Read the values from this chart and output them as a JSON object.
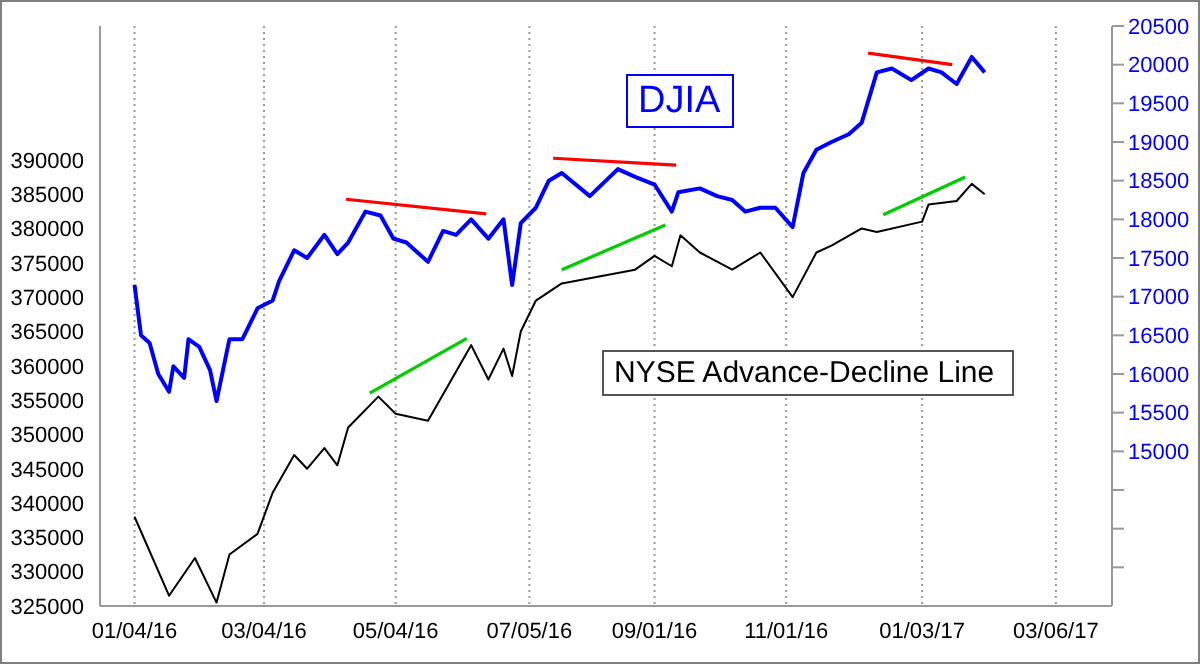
{
  "chart_data": {
    "type": "line",
    "legend": false,
    "grid": "x",
    "xlim": [
      "2015-12-19",
      "2017-04-01"
    ],
    "xticks": [
      {
        "value": "2016-01-04",
        "label": "01/04/16"
      },
      {
        "value": "2016-03-04",
        "label": "03/04/16"
      },
      {
        "value": "2016-05-04",
        "label": "05/04/16"
      },
      {
        "value": "2016-07-05",
        "label": "07/05/16"
      },
      {
        "value": "2016-09-01",
        "label": "09/01/16"
      },
      {
        "value": "2016-11-01",
        "label": "11/01/16"
      },
      {
        "value": "2017-01-03",
        "label": "01/03/17"
      },
      {
        "value": "2017-03-06",
        "label": "03/06/17"
      }
    ],
    "ylim": [
      325000,
      409500
    ],
    "yticks": [
      325000,
      330000,
      335000,
      340000,
      345000,
      350000,
      355000,
      360000,
      365000,
      370000,
      375000,
      380000,
      385000,
      390000
    ],
    "y2lim": [
      13000,
      20500
    ],
    "y2ticks": [
      {
        "value": 13500,
        "label": null
      },
      {
        "value": 14000,
        "label": null
      },
      {
        "value": 14500,
        "label": null
      },
      15000,
      15500,
      16000,
      16500,
      17000,
      17500,
      18000,
      18500,
      19000,
      19500,
      20000,
      20500
    ],
    "series": [
      {
        "name": "DJIA",
        "color": "#0000ff",
        "axis": "y2",
        "x": [
          "2016-01-04",
          "2016-01-07",
          "2016-01-11",
          "2016-01-15",
          "2016-01-20",
          "2016-01-22",
          "2016-01-27",
          "2016-01-29",
          "2016-02-03",
          "2016-02-08",
          "2016-02-11",
          "2016-02-17",
          "2016-02-23",
          "2016-03-01",
          "2016-03-08",
          "2016-03-11",
          "2016-03-18",
          "2016-03-24",
          "2016-04-01",
          "2016-04-07",
          "2016-04-12",
          "2016-04-20",
          "2016-04-27",
          "2016-05-03",
          "2016-05-09",
          "2016-05-19",
          "2016-05-26",
          "2016-06-01",
          "2016-06-08",
          "2016-06-16",
          "2016-06-23",
          "2016-06-27",
          "2016-07-01",
          "2016-07-08",
          "2016-07-14",
          "2016-07-20",
          "2016-08-02",
          "2016-08-15",
          "2016-08-23",
          "2016-09-01",
          "2016-09-09",
          "2016-09-12",
          "2016-09-22",
          "2016-09-30",
          "2016-10-07",
          "2016-10-13",
          "2016-10-20",
          "2016-10-27",
          "2016-11-04",
          "2016-11-09",
          "2016-11-15",
          "2016-11-22",
          "2016-11-30",
          "2016-12-06",
          "2016-12-13",
          "2016-12-20",
          "2016-12-29",
          "2017-01-06",
          "2017-01-12",
          "2017-01-19",
          "2017-01-26",
          "2017-02-01"
        ],
        "values": [
          17150,
          16500,
          16400,
          16000,
          15770,
          16100,
          15950,
          16450,
          16350,
          16050,
          15650,
          16450,
          16450,
          16850,
          16950,
          17200,
          17600,
          17500,
          17800,
          17550,
          17700,
          18100,
          18050,
          17750,
          17700,
          17450,
          17850,
          17800,
          18000,
          17750,
          18000,
          17150,
          17950,
          18150,
          18500,
          18600,
          18300,
          18650,
          18550,
          18450,
          18100,
          18350,
          18400,
          18300,
          18250,
          18100,
          18150,
          18150,
          17900,
          18600,
          18900,
          19000,
          19100,
          19250,
          19900,
          19950,
          19800,
          19950,
          19900,
          19750,
          20100,
          19900
        ]
      },
      {
        "name": "NYSE Advance-Decline Line",
        "color": "#000000",
        "x": [
          "2016-01-04",
          "2016-01-20",
          "2016-02-01",
          "2016-02-11",
          "2016-02-17",
          "2016-03-01",
          "2016-03-08",
          "2016-03-18",
          "2016-03-24",
          "2016-04-01",
          "2016-04-07",
          "2016-04-12",
          "2016-04-26",
          "2016-05-04",
          "2016-05-19",
          "2016-06-08",
          "2016-06-16",
          "2016-06-23",
          "2016-06-27",
          "2016-07-01",
          "2016-07-08",
          "2016-07-20",
          "2016-08-23",
          "2016-09-01",
          "2016-09-09",
          "2016-09-13",
          "2016-09-22",
          "2016-10-07",
          "2016-10-20",
          "2016-11-04",
          "2016-11-15",
          "2016-11-22",
          "2016-12-06",
          "2016-12-13",
          "2017-01-03",
          "2017-01-06",
          "2017-01-19",
          "2017-01-26",
          "2017-02-01"
        ],
        "values": [
          338000,
          326500,
          332000,
          325500,
          332500,
          335500,
          341500,
          347000,
          345000,
          348000,
          345500,
          351000,
          355500,
          353000,
          352000,
          363000,
          358000,
          362500,
          358500,
          365000,
          369500,
          372000,
          374000,
          376000,
          374500,
          379000,
          376500,
          374000,
          376500,
          370000,
          376500,
          377500,
          380000,
          379500,
          381000,
          383500,
          384000,
          386500,
          385000
        ]
      },
      {
        "color": "#ff0000",
        "axis": "y2",
        "x": [
          "2016-04-11",
          "2016-06-15"
        ],
        "values": [
          18260,
          18070
        ]
      },
      {
        "color": "#ff0000",
        "axis": "y2",
        "x": [
          "2016-07-16",
          "2016-09-11"
        ],
        "values": [
          18790,
          18700
        ]
      },
      {
        "color": "#ff0000",
        "axis": "y2",
        "x": [
          "2016-12-09",
          "2017-01-17"
        ],
        "values": [
          20150,
          20000
        ]
      },
      {
        "color": "#00cc00",
        "x": [
          "2016-04-22",
          "2016-06-06"
        ],
        "values": [
          356000,
          364000
        ]
      },
      {
        "color": "#00cc00",
        "x": [
          "2016-07-20",
          "2016-09-06"
        ],
        "values": [
          374000,
          380500
        ]
      },
      {
        "color": "#00cc00",
        "x": [
          "2016-12-16",
          "2017-01-23"
        ],
        "values": [
          382000,
          387500
        ]
      }
    ]
  }
}
